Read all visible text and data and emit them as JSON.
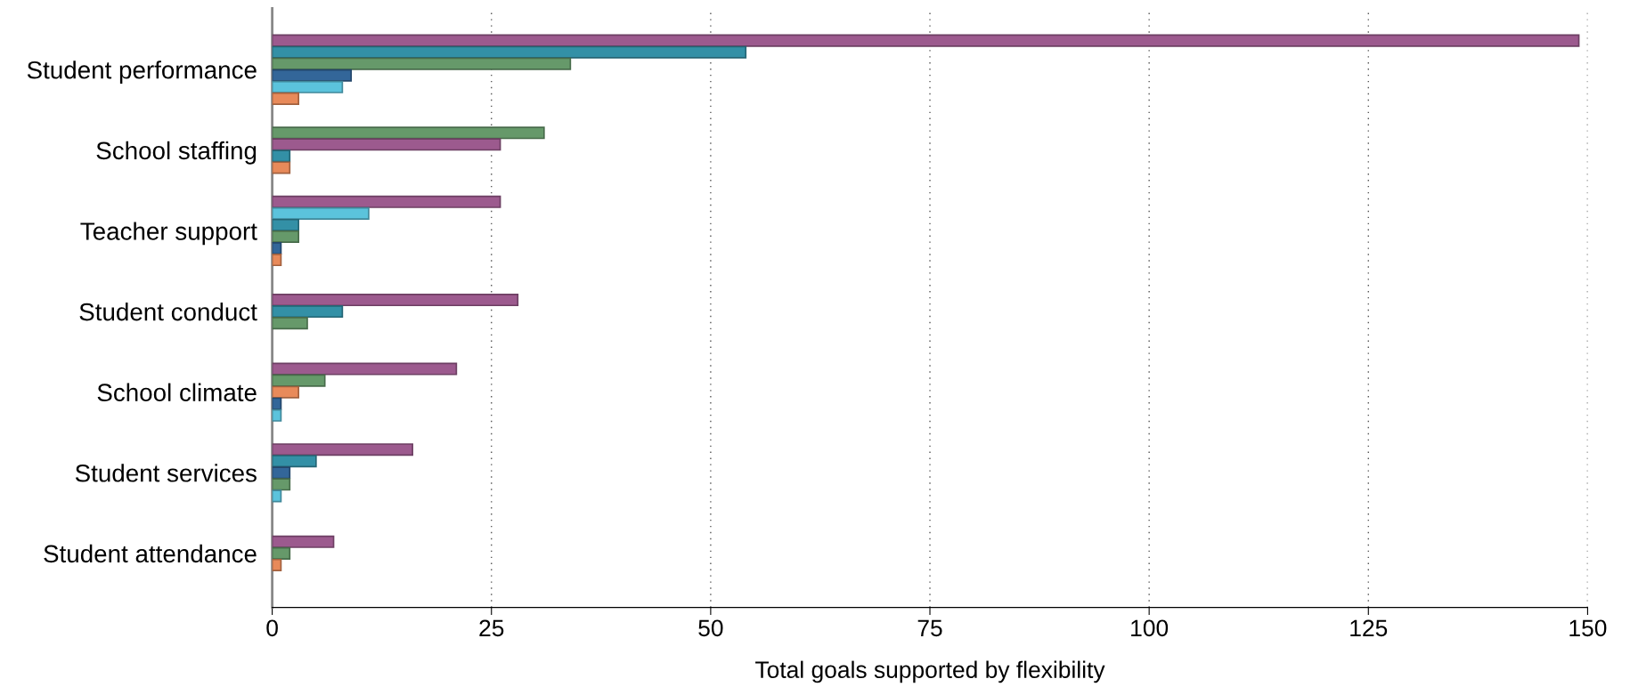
{
  "chart_data": {
    "type": "bar",
    "orientation": "horizontal",
    "xlabel": "Total goals supported by flexibility",
    "categories": [
      "Student performance",
      "School staffing",
      "Teacher support",
      "Student conduct",
      "School climate",
      "Student services",
      "Student attendance"
    ],
    "series": [
      {
        "color": "#9c5a8e",
        "values": [
          149,
          26,
          26,
          28,
          21,
          16,
          7
        ]
      },
      {
        "color": "#3390a6",
        "values": [
          54,
          2,
          3,
          8,
          null,
          5,
          null
        ]
      },
      {
        "color": "#336699",
        "values": [
          9,
          null,
          1,
          null,
          1,
          2,
          null
        ]
      },
      {
        "color": "#66996a",
        "values": [
          34,
          31,
          3,
          4,
          6,
          2,
          2
        ]
      },
      {
        "color": "#5bc3dc",
        "values": [
          8,
          null,
          11,
          null,
          1,
          1,
          null
        ]
      },
      {
        "color": "#e88a5a",
        "values": [
          3,
          2,
          1,
          null,
          3,
          null,
          1
        ]
      }
    ],
    "xlim": [
      0,
      150
    ],
    "xticks": [
      0,
      25,
      50,
      75,
      100,
      125,
      150
    ],
    "grid": "x"
  }
}
